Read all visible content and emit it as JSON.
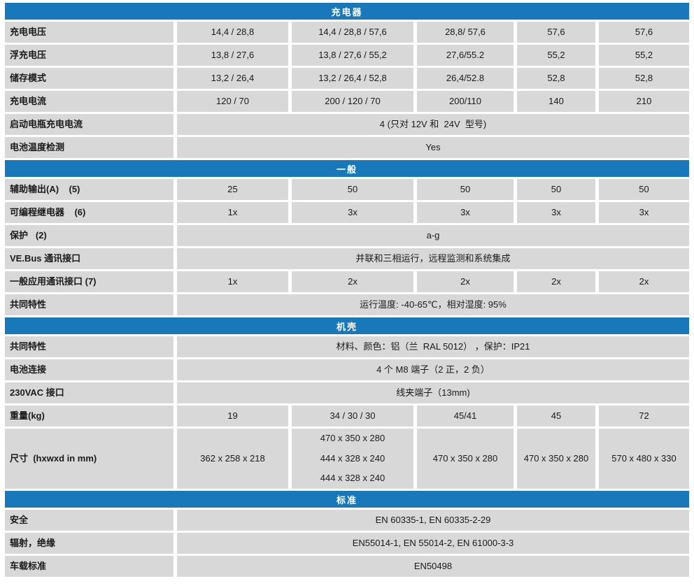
{
  "colors": {
    "section_header_bg": "#1878b9",
    "section_header_text": "#ffffff",
    "cell_bg": "#d8d8d8",
    "body_text": "#1a1a1a"
  },
  "sections": [
    {
      "title": "充电器",
      "rows": [
        {
          "label": "充电电压",
          "values": [
            "14,4 / 28,8",
            "14,4 / 28,8 / 57,6",
            "28,8/ 57,6",
            "57,6",
            "57,6"
          ]
        },
        {
          "label": "浮充电压",
          "values": [
            "13,8 / 27,6",
            "13,8 / 27,6 / 55,2",
            "27,6/55.2",
            "55,2",
            "55,2"
          ]
        },
        {
          "label": "储存模式",
          "values": [
            "13,2 / 26,4",
            "13,2 / 26,4 / 52,8",
            "26,4/52.8",
            "52,8",
            "52,8"
          ]
        },
        {
          "label": "充电电流",
          "values": [
            "120 / 70",
            "200 / 120 / 70",
            "200/110",
            "140",
            "210"
          ]
        },
        {
          "label": "启动电瓶充电电流",
          "span": "4 (只对 12V 和  24V  型号)"
        },
        {
          "label": "电池温度检测",
          "span": "Yes"
        }
      ]
    },
    {
      "title": "一般",
      "rows": [
        {
          "label": "辅助输出(A)    (5)",
          "values": [
            "25",
            "50",
            "50",
            "50",
            "50"
          ]
        },
        {
          "label": "可编程继电器    (6)",
          "values": [
            "1x",
            "3x",
            "3x",
            "3x",
            "3x"
          ]
        },
        {
          "label": "保护   (2)",
          "span": "a-g"
        },
        {
          "label": "VE.Bus 通讯接口",
          "span": "并联和三相运行，远程监测和系统集成"
        },
        {
          "label": "一般应用通讯接口 (7)",
          "values": [
            "1x",
            "2x",
            "2x",
            "2x",
            "2x"
          ]
        },
        {
          "label": "共同特性",
          "span": "运行温度: -40-65℃，相对湿度: 95%"
        }
      ]
    },
    {
      "title": "机壳",
      "rows": [
        {
          "label": "共同特性",
          "span": "材料、颜色：铝（兰  RAL 5012） ，保护：IP21"
        },
        {
          "label": "电池连接",
          "span": "4 个 M8 端子（2 正，2 负）"
        },
        {
          "label": "230VAC 接口",
          "span": "线夹端子（13mm)"
        },
        {
          "label": "重量(kg)",
          "values": [
            "19",
            "34 / 30 / 30",
            "45/41",
            "45",
            "72"
          ]
        },
        {
          "label": "尺寸  (hxwxd in mm)",
          "values": [
            "362 x 258 x 218",
            [
              "470 x 350 x 280",
              "444 x 328 x 240",
              "444 x 328 x 240"
            ],
            "470 x 350 x 280",
            "470 x 350 x 280",
            "570 x 480 x 330"
          ]
        }
      ]
    },
    {
      "title": "标准",
      "rows": [
        {
          "label": "安全",
          "span": "EN 60335-1, EN 60335-2-29"
        },
        {
          "label": "辐射，绝缘",
          "span": "EN55014-1, EN 55014-2, EN 61000-3-3"
        },
        {
          "label": "车载标准",
          "span": "EN50498"
        }
      ]
    }
  ]
}
